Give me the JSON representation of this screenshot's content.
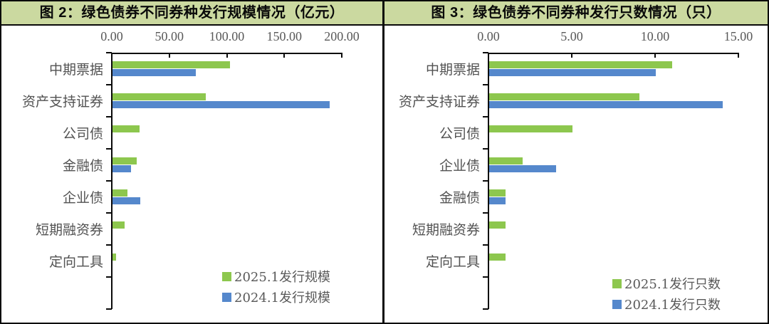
{
  "colors": {
    "series_green": "#8dc74e",
    "series_blue": "#5588cc",
    "header_bg": "#cbd9a0",
    "axis_line": "#0a0a0a",
    "label_text": "#595959"
  },
  "chart_data": [
    {
      "type": "bar",
      "orientation": "horizontal",
      "title": "图 2：绿色债券不同券种发行规模情况（亿元）",
      "unit": "亿元",
      "categories": [
        "中期票据",
        "资产支持证券",
        "公司债",
        "金融债",
        "企业债",
        "短期融资券",
        "定向工具"
      ],
      "series": [
        {
          "name": "2025.1发行规模",
          "color": "#8dc74e",
          "values": [
            102,
            81,
            23.5,
            21,
            13.2,
            10.7,
            3.1
          ]
        },
        {
          "name": "2024.1发行规模",
          "color": "#5588cc",
          "values": [
            72.4,
            188.7,
            0,
            15.8,
            24.3,
            0,
            0
          ]
        }
      ],
      "xlim": [
        0,
        200
      ],
      "xticks": [
        "0.00",
        "50.00",
        "100.00",
        "150.00",
        "200.00"
      ],
      "grid": false,
      "legend_position": "bottom-right"
    },
    {
      "type": "bar",
      "orientation": "horizontal",
      "title": "图 3：绿色债券不同券种发行只数情况（只）",
      "unit": "只",
      "categories": [
        "中期票据",
        "资产支持证券",
        "公司债",
        "企业债",
        "金融债",
        "短期融资券",
        "定向工具"
      ],
      "series": [
        {
          "name": "2025.1发行只数",
          "color": "#8dc74e",
          "values": [
            11,
            9,
            5,
            2,
            1,
            1,
            1
          ]
        },
        {
          "name": "2024.1发行只数",
          "color": "#5588cc",
          "values": [
            10,
            14,
            0,
            4,
            1,
            0,
            0
          ]
        }
      ],
      "xlim": [
        0,
        15
      ],
      "xticks": [
        "0.00",
        "5.00",
        "10.00",
        "15.00"
      ],
      "grid": false,
      "legend_position": "bottom-right"
    }
  ]
}
